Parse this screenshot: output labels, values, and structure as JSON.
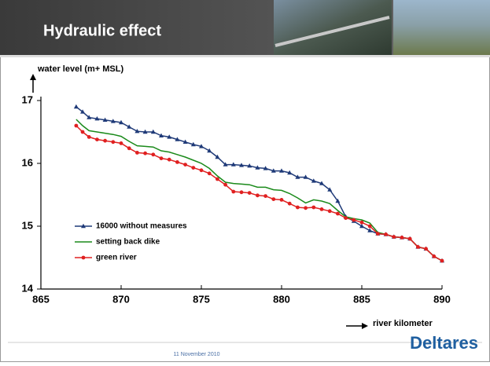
{
  "title": "Hydraulic effect",
  "date": "11 November 2010",
  "logo": "Deltares",
  "chart_data": {
    "type": "line",
    "y_label": "water level (m+ MSL)",
    "x_label": "river kilometer",
    "xlim": [
      865,
      890
    ],
    "xticks": [
      865,
      870,
      875,
      880,
      885,
      890
    ],
    "ylim": [
      14,
      17
    ],
    "yticks": [
      14,
      15,
      16,
      17
    ],
    "legend": "upper left",
    "x": [
      867.2,
      867.6,
      868,
      868.5,
      869,
      869.5,
      870,
      870.5,
      871,
      871.5,
      872,
      872.5,
      873,
      873.5,
      874,
      874.5,
      875,
      875.5,
      876,
      876.5,
      877,
      877.5,
      878,
      878.5,
      879,
      879.5,
      880,
      880.5,
      881,
      881.5,
      882,
      882.5,
      883,
      883.5,
      884,
      884.5,
      885,
      885.5,
      886,
      886.5,
      887,
      887.5,
      888,
      888.5,
      889,
      889.5,
      890
    ],
    "series": [
      {
        "name": "16000 without measures",
        "color": "#1f3a78",
        "marker": "triangle",
        "values": [
          16.9,
          16.82,
          16.73,
          16.71,
          16.69,
          16.67,
          16.65,
          16.58,
          16.51,
          16.5,
          16.5,
          16.44,
          16.42,
          16.38,
          16.34,
          16.3,
          16.27,
          16.2,
          16.1,
          15.98,
          15.98,
          15.97,
          15.96,
          15.93,
          15.92,
          15.88,
          15.88,
          15.85,
          15.78,
          15.78,
          15.72,
          15.68,
          15.58,
          15.4,
          15.15,
          15.08,
          15.0,
          14.93,
          14.88,
          14.87,
          14.83,
          14.82,
          14.8,
          14.67,
          14.64,
          14.52,
          14.45
        ]
      },
      {
        "name": "setting back dike",
        "color": "#1a8a1a",
        "marker": "none",
        "values": [
          16.7,
          16.6,
          16.52,
          16.5,
          16.48,
          16.46,
          16.43,
          16.35,
          16.28,
          16.27,
          16.26,
          16.2,
          16.18,
          16.14,
          16.1,
          16.05,
          16.0,
          15.92,
          15.8,
          15.7,
          15.68,
          15.67,
          15.66,
          15.62,
          15.62,
          15.58,
          15.57,
          15.52,
          15.45,
          15.37,
          15.42,
          15.4,
          15.36,
          15.25,
          15.15,
          15.12,
          15.1,
          15.05,
          14.9,
          14.87,
          14.83,
          14.82,
          14.8,
          14.67,
          14.64,
          14.52,
          14.45
        ]
      },
      {
        "name": "green river",
        "color": "#e02020",
        "marker": "circle",
        "values": [
          16.6,
          16.5,
          16.42,
          16.38,
          16.36,
          16.34,
          16.32,
          16.24,
          16.17,
          16.16,
          16.14,
          16.08,
          16.06,
          16.02,
          15.98,
          15.93,
          15.89,
          15.84,
          15.75,
          15.66,
          15.55,
          15.54,
          15.53,
          15.49,
          15.48,
          15.43,
          15.42,
          15.36,
          15.3,
          15.29,
          15.3,
          15.27,
          15.24,
          15.2,
          15.13,
          15.1,
          15.06,
          15.0,
          14.88,
          14.87,
          14.83,
          14.82,
          14.8,
          14.67,
          14.64,
          14.52,
          14.45
        ]
      }
    ]
  }
}
